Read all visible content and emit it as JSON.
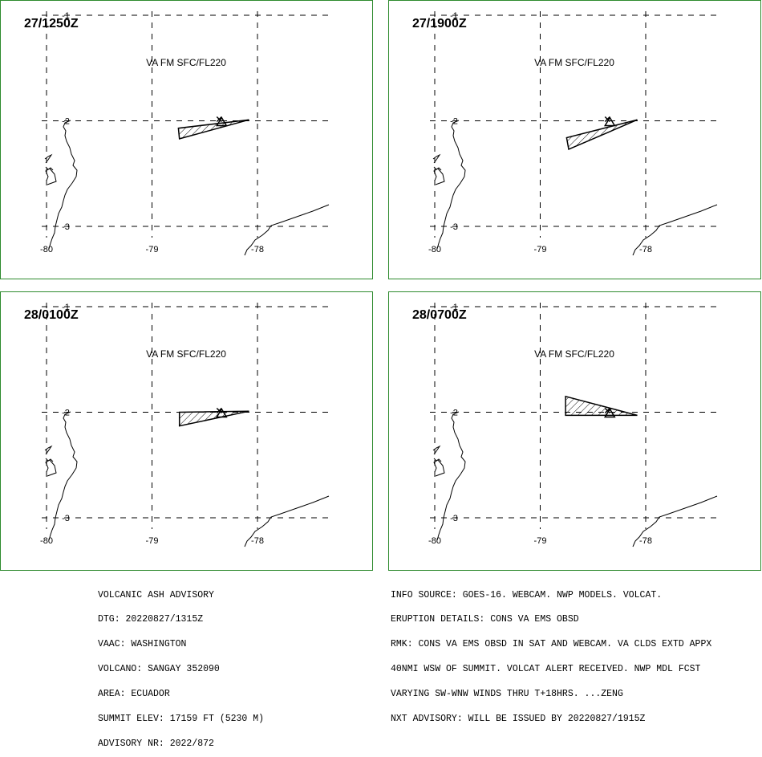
{
  "panels": [
    {
      "time": "27/1250Z",
      "layer": "VA FM SFC/FL220",
      "polygon": [
        [
          -78.08,
          -1.99
        ],
        [
          -78.75,
          -2.07
        ],
        [
          -78.74,
          -2.17
        ]
      ]
    },
    {
      "time": "27/1900Z",
      "layer": "VA FM SFC/FL220",
      "polygon": [
        [
          -78.08,
          -1.99
        ],
        [
          -78.75,
          -2.16
        ],
        [
          -78.73,
          -2.27
        ]
      ]
    },
    {
      "time": "28/0100Z",
      "layer": "VA FM SFC/FL220",
      "polygon": [
        [
          -78.08,
          -1.99
        ],
        [
          -78.74,
          -2.0
        ],
        [
          -78.74,
          -2.13
        ]
      ]
    },
    {
      "time": "28/0700Z",
      "layer": "VA FM SFC/FL220",
      "polygon": [
        [
          -78.08,
          -2.03
        ],
        [
          -78.76,
          -1.85
        ],
        [
          -78.76,
          -2.03
        ]
      ]
    }
  ],
  "axes": {
    "lon_ticks": [
      -80,
      -79,
      -78
    ],
    "lat_ticks": [
      -1,
      -2,
      -3
    ],
    "lon_labels": [
      "-80",
      "-79",
      "-78"
    ],
    "lat_labels": [
      "-1",
      "-2",
      "-3"
    ]
  },
  "volcano": {
    "name": "SANGAY",
    "lon": -78.34,
    "lat": -2.0
  },
  "advisory_left": [
    "VOLCANIC ASH ADVISORY",
    "DTG: 20220827/1315Z",
    "VAAC: WASHINGTON",
    "VOLCANO: SANGAY 352090",
    "AREA: ECUADOR",
    "SUMMIT ELEV: 17159 FT (5230 M)",
    "ADVISORY NR: 2022/872"
  ],
  "advisory_right": [
    "INFO SOURCE: GOES-16. WEBCAM. NWP MODELS. VOLCAT.",
    "ERUPTION DETAILS: CONS VA EMS OBSD",
    "RMK: CONS VA EMS OBSD IN SAT AND WEBCAM. VA CLDS EXTD APPX",
    "40NMI WSW OF SUMMIT. VOLCAT ALERT RECEIVED. NWP MDL FCST",
    "VARYING SW-WNW WINDS THRU T+18HRS. ...ZENG",
    "NXT ADVISORY: WILL BE ISSUED BY 20220827/1915Z"
  ],
  "colors": {
    "border": "#2e8b2e",
    "line": "#000000",
    "grid": "#000000",
    "background": "#ffffff"
  }
}
